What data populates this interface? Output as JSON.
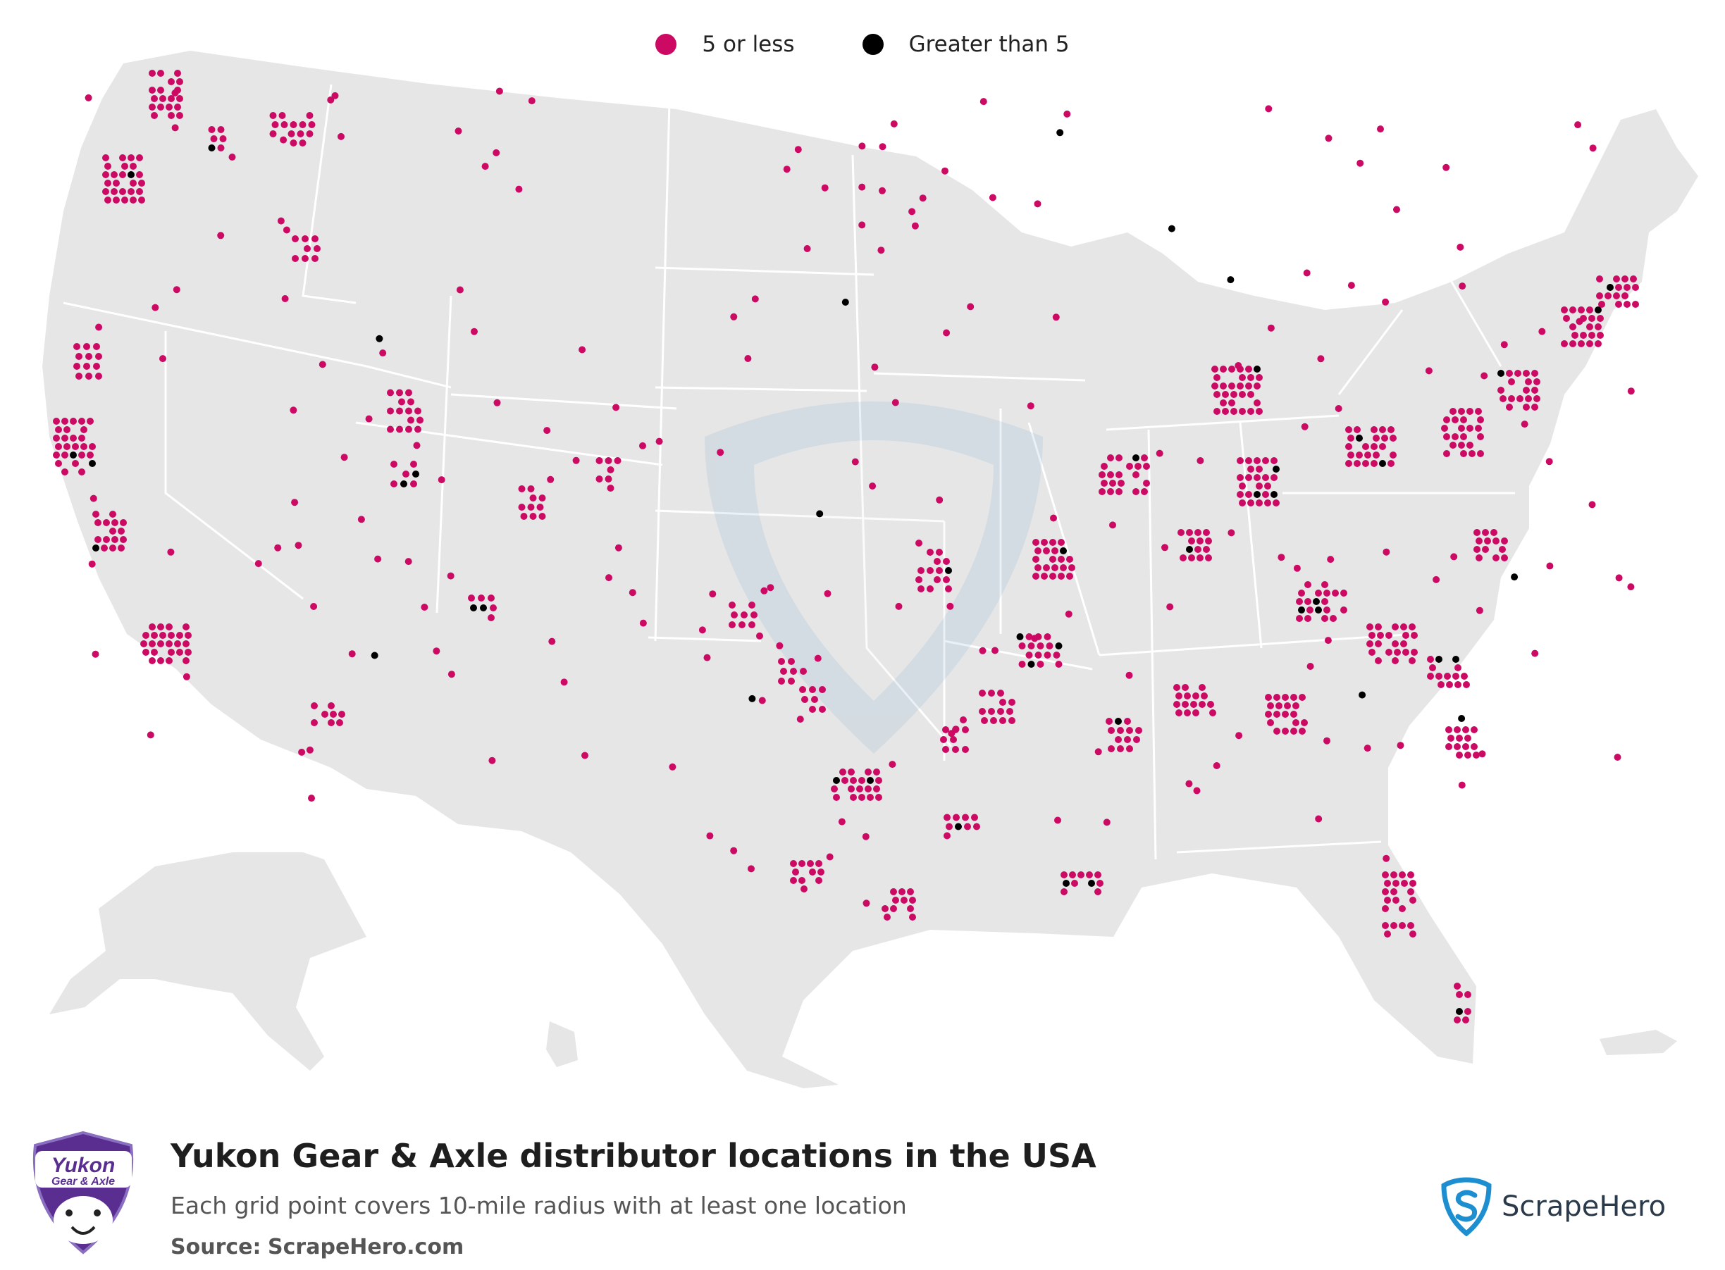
{
  "legend": {
    "items": [
      {
        "label": "5 or less",
        "color": "#cc0a63"
      },
      {
        "label": "Greater than 5",
        "color": "#000000"
      }
    ]
  },
  "title": "Yukon Gear & Axle distributor locations in the USA",
  "subtitle": "Each grid point covers 10-mile radius with at least one location",
  "source": {
    "label": "Source:",
    "value": "ScrapeHero.com"
  },
  "brand_logo": {
    "line1": "Yukon",
    "line2": "Gear & Axle",
    "icon": "polar-bear-shield-icon"
  },
  "publisher_logo": {
    "name": "ScrapeHero",
    "icon": "scrapehero-shield-icon"
  },
  "colors": {
    "land": "#e6e6e6",
    "borders": "#ffffff",
    "point_low": "#cc0a63",
    "point_high": "#000000",
    "watermark": "#5b9bc9",
    "brand_purple": "#5a2d91",
    "brand_blue": "#1d8fd1"
  },
  "map": {
    "region": "United States",
    "series": [
      {
        "name": "5 or less",
        "color_key": "point_low"
      },
      {
        "name": "Greater than 5",
        "color_key": "point_high"
      }
    ]
  }
}
